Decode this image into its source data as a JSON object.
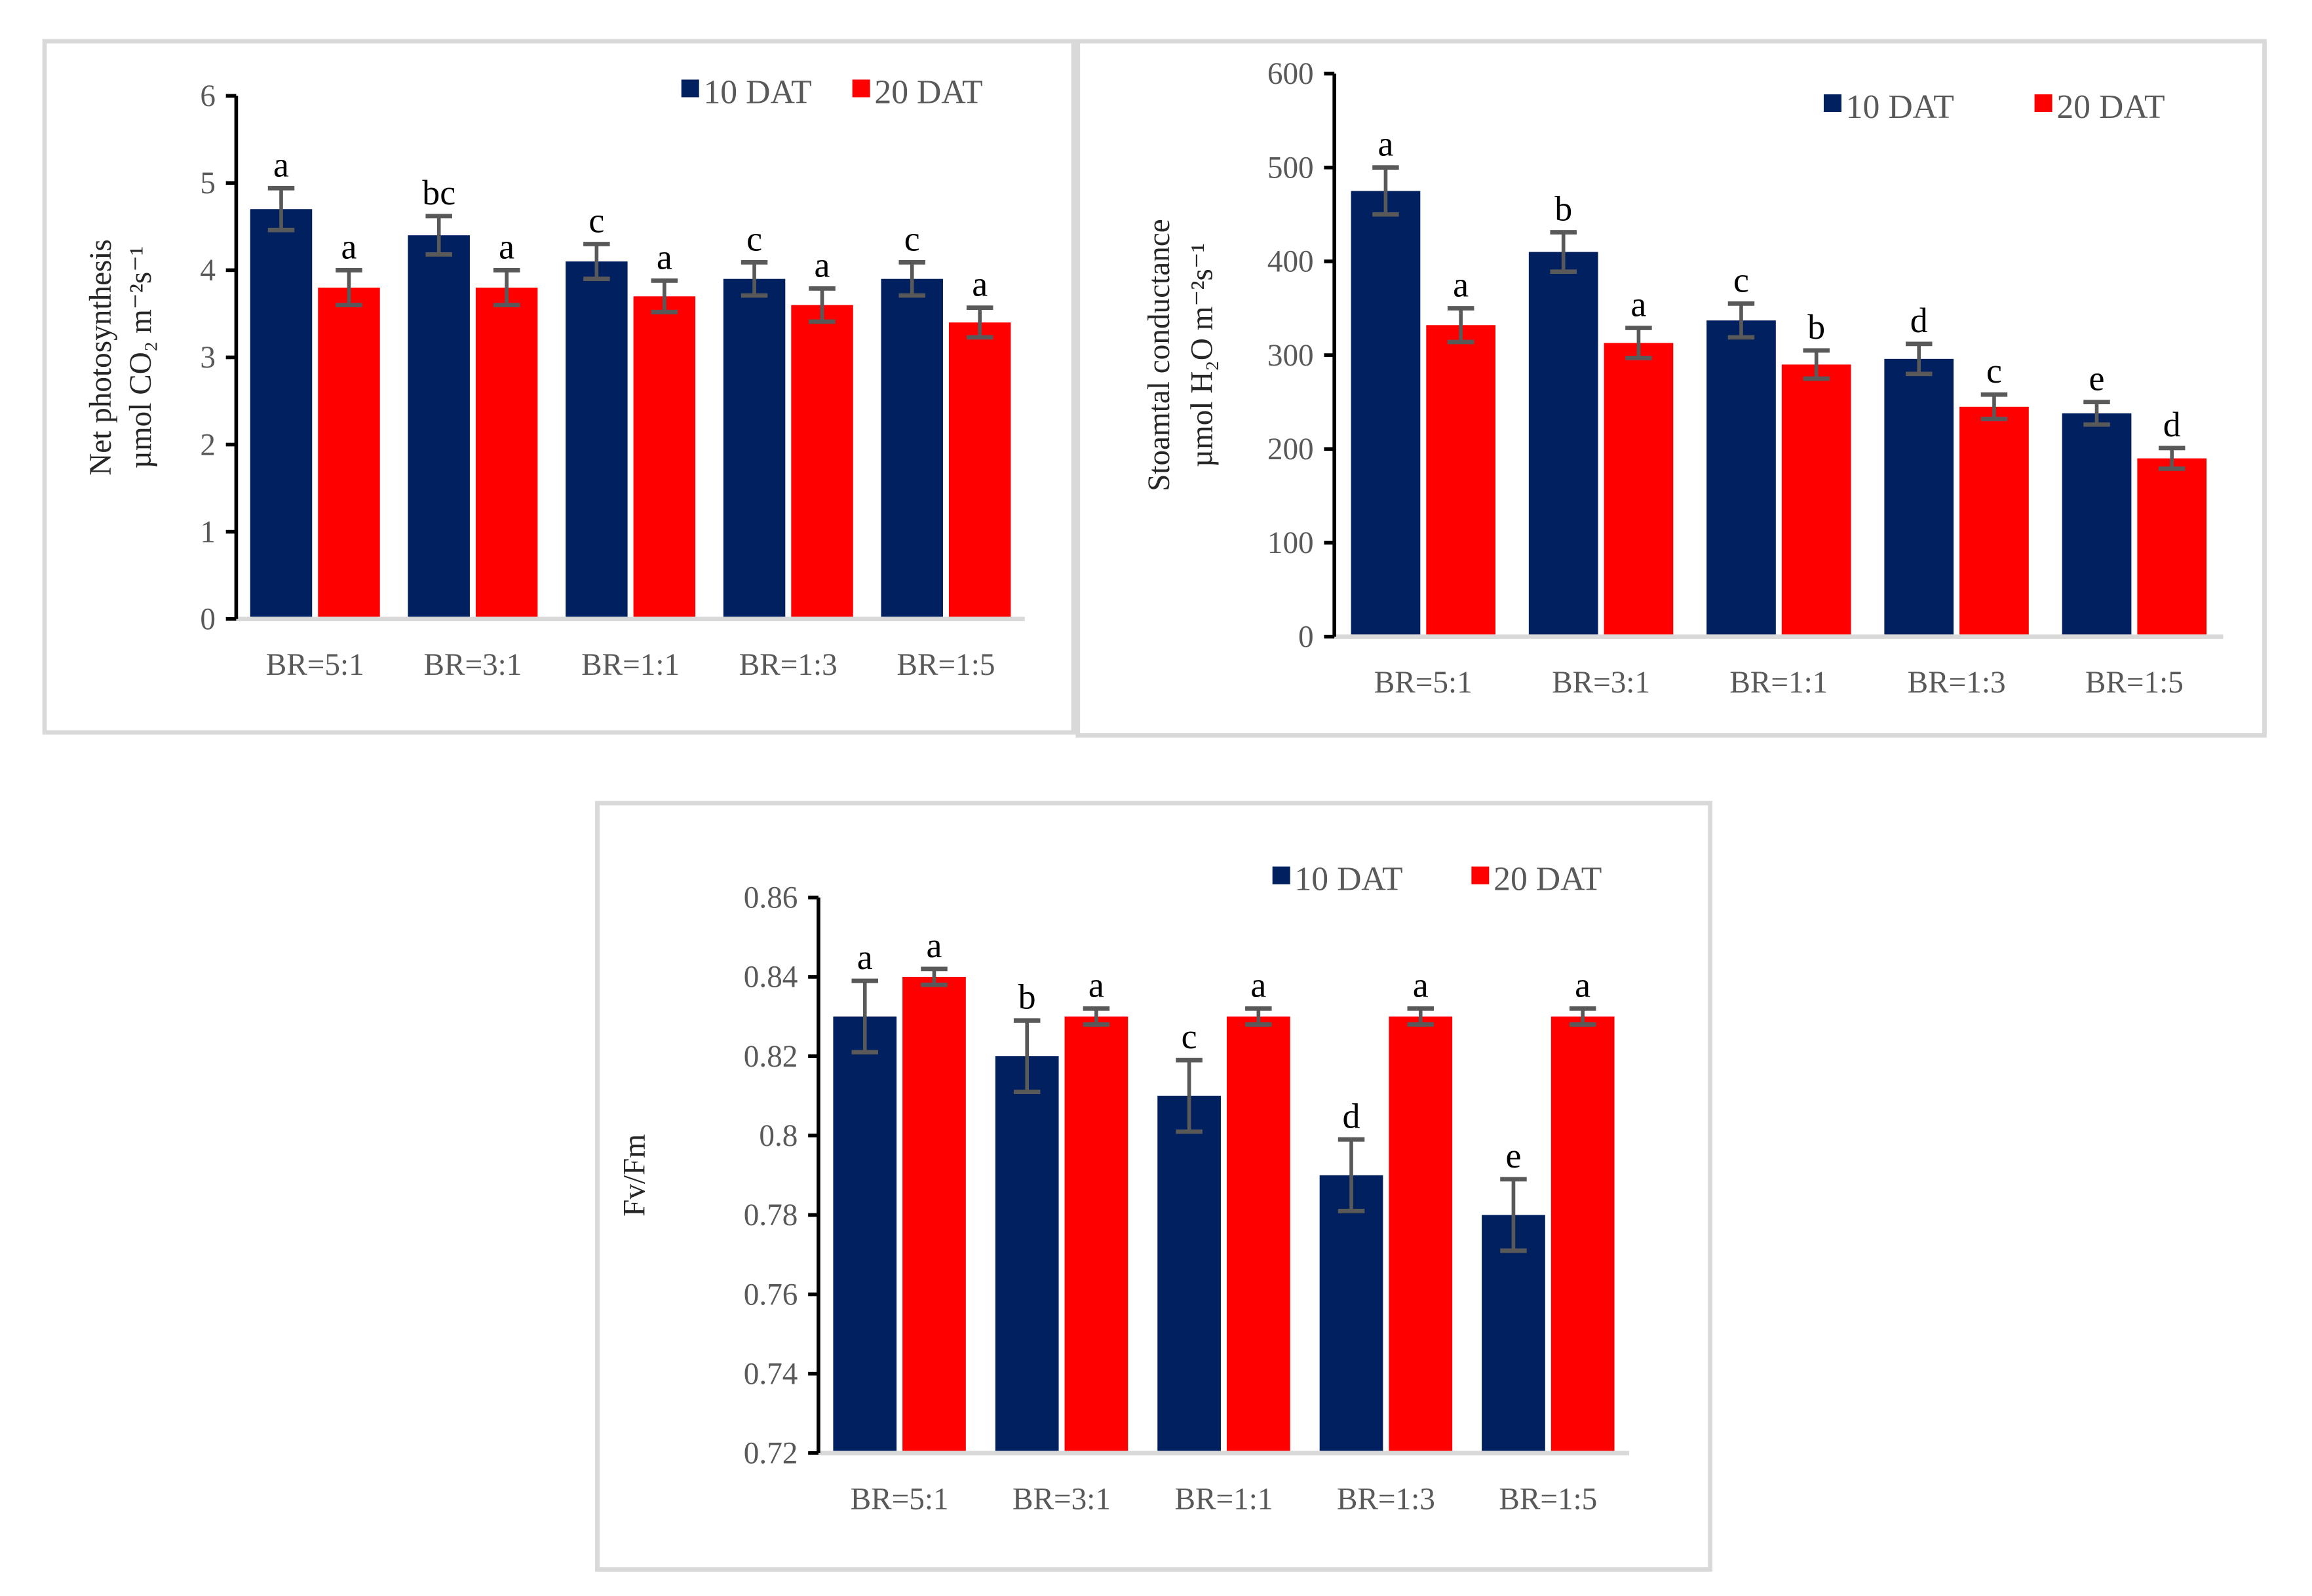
{
  "colors": {
    "s1": "#002060",
    "s2": "#ff0000",
    "err": "#595959",
    "axis": "#000000",
    "baseline": "#d9d9d9"
  },
  "chart_data": [
    {
      "type": "bar",
      "title": "",
      "ylabel": [
        "Net photosynthesis",
        "µmol CO₂ m⁻²s⁻¹"
      ],
      "xlabel": "",
      "categories": [
        "BR=5:1",
        "BR=3:1",
        "BR=1:1",
        "BR=1:3",
        "BR=1:5"
      ],
      "ylim": [
        0,
        6
      ],
      "yticks": [
        0,
        1,
        2,
        3,
        4,
        5,
        6
      ],
      "yticklabels": [
        "0",
        "1",
        "2",
        "3",
        "4",
        "5",
        "6"
      ],
      "legend_position": "top-right",
      "series": [
        {
          "name": "10 DAT",
          "values": [
            4.7,
            4.4,
            4.1,
            3.9,
            3.9
          ],
          "errors": [
            0.24,
            0.22,
            0.2,
            0.19,
            0.19
          ],
          "letters": [
            "a",
            "bc",
            "c",
            "c",
            "c"
          ]
        },
        {
          "name": "20 DAT",
          "values": [
            3.8,
            3.8,
            3.7,
            3.6,
            3.4
          ],
          "errors": [
            0.2,
            0.2,
            0.18,
            0.19,
            0.17
          ],
          "letters": [
            "a",
            "a",
            "a",
            "a",
            "a"
          ]
        }
      ]
    },
    {
      "type": "bar",
      "title": "",
      "ylabel": [
        "Stoamtal conductance",
        "µmol H₂O m⁻²s⁻¹"
      ],
      "xlabel": "",
      "categories": [
        "BR=5:1",
        "BR=3:1",
        "BR=1:1",
        "BR=1:3",
        "BR=1:5"
      ],
      "ylim": [
        0,
        600
      ],
      "yticks": [
        0,
        100,
        200,
        300,
        400,
        500,
        600
      ],
      "yticklabels": [
        "0",
        "100",
        "200",
        "300",
        "400",
        "500",
        "600"
      ],
      "legend_position": "top-right",
      "series": [
        {
          "name": "10 DAT",
          "values": [
            475,
            410,
            337,
            296,
            238
          ],
          "errors": [
            25,
            21,
            18,
            16,
            12
          ],
          "letters": [
            "a",
            "b",
            "c",
            "d",
            "e"
          ]
        },
        {
          "name": "20 DAT",
          "values": [
            332,
            313,
            290,
            245,
            190
          ],
          "errors": [
            18,
            16,
            15,
            13,
            11
          ],
          "letters": [
            "a",
            "a",
            "b",
            "c",
            "d"
          ]
        }
      ]
    },
    {
      "type": "bar",
      "title": "",
      "ylabel": [
        "Fv/Fm"
      ],
      "xlabel": "",
      "categories": [
        "BR=5:1",
        "BR=3:1",
        "BR=1:1",
        "BR=1:3",
        "BR=1:5"
      ],
      "ylim": [
        0.72,
        0.86
      ],
      "yticks": [
        0.72,
        0.74,
        0.76,
        0.78,
        0.8,
        0.82,
        0.84,
        0.86
      ],
      "yticklabels": [
        "0.72",
        "0.74",
        "0.76",
        "0.78",
        "0.8",
        "0.82",
        "0.84",
        "0.86"
      ],
      "legend_position": "top-right",
      "series": [
        {
          "name": "10 DAT",
          "values": [
            0.83,
            0.82,
            0.81,
            0.79,
            0.78
          ],
          "errors": [
            0.009,
            0.009,
            0.009,
            0.009,
            0.009
          ],
          "letters": [
            "a",
            "b",
            "c",
            "d",
            "e"
          ]
        },
        {
          "name": "20 DAT",
          "values": [
            0.84,
            0.83,
            0.83,
            0.83,
            0.83
          ],
          "errors": [
            0.002,
            0.002,
            0.002,
            0.002,
            0.002
          ],
          "letters": [
            "a",
            "a",
            "a",
            "a",
            "a"
          ]
        }
      ]
    }
  ]
}
